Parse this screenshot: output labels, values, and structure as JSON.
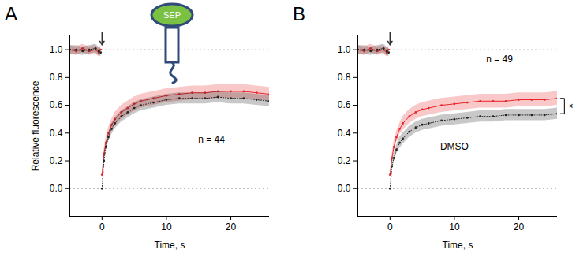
{
  "chart_data": [
    {
      "type": "line",
      "title": "A",
      "xlabel": "Time, s",
      "ylabel": "Relative fluorescence",
      "x": [
        -5,
        -4,
        -3,
        -2,
        -1,
        -0.5,
        -0.2,
        -0.1,
        0,
        0.3,
        0.6,
        1,
        1.5,
        2,
        3,
        4,
        5,
        6,
        8,
        10,
        12,
        14,
        16,
        18,
        20,
        22,
        24,
        26
      ],
      "series": [
        {
          "color": "#e8262a",
          "marker": "circle",
          "line_style": "solid",
          "values": [
            1.0,
            0.99,
            1.01,
            0.99,
            1.0,
            0.98,
            1.0,
            null,
            0.1,
            0.25,
            0.33,
            0.4,
            0.46,
            0.5,
            0.55,
            0.58,
            0.61,
            0.63,
            0.65,
            0.67,
            0.68,
            0.69,
            0.69,
            0.7,
            0.7,
            0.7,
            0.69,
            0.68
          ],
          "error": [
            0.03,
            0.03,
            0.03,
            0.03,
            0.03,
            0.03,
            0.03,
            null,
            0,
            0.03,
            0.04,
            0.04,
            0.04,
            0.05,
            0.05,
            0.05,
            0.05,
            0.05,
            0.05,
            0.05,
            0.05,
            0.05,
            0.05,
            0.05,
            0.05,
            0.05,
            0.05,
            0.05
          ]
        },
        {
          "color": "#222222",
          "marker": "circle",
          "line_style": "dotted",
          "values": [
            1.0,
            1.0,
            0.99,
            1.0,
            1.01,
            0.99,
            0.98,
            null,
            0.0,
            0.2,
            0.3,
            0.37,
            0.43,
            0.47,
            0.52,
            0.55,
            0.58,
            0.6,
            0.62,
            0.64,
            0.65,
            0.65,
            0.65,
            0.66,
            0.65,
            0.65,
            0.64,
            0.63
          ],
          "error": [
            0.03,
            0.03,
            0.03,
            0.03,
            0.03,
            0.03,
            0.03,
            null,
            0,
            0.03,
            0.03,
            0.03,
            0.04,
            0.04,
            0.04,
            0.04,
            0.04,
            0.04,
            0.04,
            0.04,
            0.04,
            0.04,
            0.04,
            0.04,
            0.04,
            0.04,
            0.04,
            0.04
          ]
        }
      ],
      "xlim": [
        -5,
        26
      ],
      "xticks": [
        0,
        10,
        20
      ],
      "ylim": [
        -0.2,
        1.1
      ],
      "yticks": [
        {
          "value": 0,
          "label": "0.0"
        },
        {
          "value": 0.2,
          "label": "0.2"
        },
        {
          "value": 0.4,
          "label": "0.4"
        },
        {
          "value": 0.6,
          "label": "0.6"
        },
        {
          "value": 0.8,
          "label": "0.8"
        },
        {
          "value": 1,
          "label": "1.0"
        }
      ],
      "hlines": [
        0,
        1
      ],
      "arrow_at": 0,
      "grid": false,
      "icon_label": "SEP",
      "annotations": [
        {
          "text": "n = 44",
          "x": 17,
          "y": 0.35
        }
      ]
    },
    {
      "type": "line",
      "title": "B",
      "xlabel": "Time, s",
      "x": [
        -5,
        -4,
        -3,
        -2,
        -1,
        -0.5,
        -0.2,
        -0.1,
        0,
        0.3,
        0.6,
        1,
        1.5,
        2,
        3,
        4,
        5,
        6,
        8,
        10,
        12,
        14,
        16,
        18,
        20,
        22,
        24,
        26
      ],
      "series": [
        {
          "color": "#e8262a",
          "marker": "circle",
          "line_style": "solid",
          "values": [
            1.0,
            0.99,
            1.01,
            0.99,
            1.0,
            0.98,
            1.0,
            null,
            0.1,
            0.22,
            0.3,
            0.37,
            0.43,
            0.47,
            0.52,
            0.55,
            0.57,
            0.58,
            0.6,
            0.61,
            0.62,
            0.63,
            0.63,
            0.63,
            0.64,
            0.64,
            0.64,
            0.65
          ],
          "error": [
            0.03,
            0.03,
            0.03,
            0.03,
            0.03,
            0.03,
            0.03,
            null,
            0,
            0.03,
            0.04,
            0.04,
            0.04,
            0.05,
            0.05,
            0.05,
            0.05,
            0.05,
            0.05,
            0.05,
            0.05,
            0.05,
            0.05,
            0.05,
            0.05,
            0.05,
            0.05,
            0.05
          ]
        },
        {
          "color": "#222222",
          "marker": "circle",
          "line_style": "dotted",
          "values": [
            1.0,
            1.0,
            0.99,
            1.0,
            1.01,
            0.99,
            0.98,
            null,
            0.0,
            0.16,
            0.22,
            0.28,
            0.33,
            0.36,
            0.41,
            0.44,
            0.46,
            0.47,
            0.49,
            0.5,
            0.51,
            0.52,
            0.52,
            0.53,
            0.53,
            0.53,
            0.53,
            0.54
          ],
          "error": [
            0.03,
            0.03,
            0.03,
            0.03,
            0.03,
            0.03,
            0.03,
            null,
            0,
            0.03,
            0.03,
            0.03,
            0.04,
            0.04,
            0.04,
            0.04,
            0.04,
            0.04,
            0.04,
            0.04,
            0.04,
            0.04,
            0.04,
            0.04,
            0.04,
            0.04,
            0.04,
            0.04
          ]
        }
      ],
      "xlim": [
        -5,
        26
      ],
      "xticks": [
        0,
        10,
        20
      ],
      "ylim": [
        -0.2,
        1.1
      ],
      "yticks": [
        {
          "value": 0,
          "label": "0.0"
        },
        {
          "value": 0.2,
          "label": "0.2"
        },
        {
          "value": 0.4,
          "label": "0.4"
        },
        {
          "value": 0.6,
          "label": "0.6"
        },
        {
          "value": 0.8,
          "label": "0.8"
        },
        {
          "value": 1,
          "label": "1.0"
        }
      ],
      "hlines": [
        0,
        1
      ],
      "arrow_at": 0,
      "grid": false,
      "significance": "*",
      "annotations": [
        {
          "text": "n = 49",
          "x": 17,
          "y": 0.93
        },
        {
          "text": "DMSO",
          "x": 10,
          "y": 0.3
        }
      ]
    }
  ]
}
